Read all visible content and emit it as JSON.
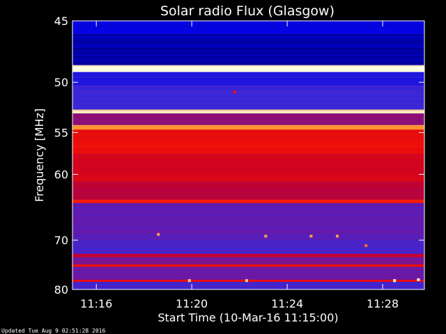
{
  "chart_data": {
    "type": "heatmap",
    "title": "Solar radio Flux (Glasgow)",
    "xlabel": "Start Time (10-Mar-16 11:15:00)",
    "ylabel": "Frequency [MHz]",
    "x_ticks": [
      "11:16",
      "11:20",
      "11:24",
      "11:28"
    ],
    "x_tick_minutes": [
      1,
      5,
      9,
      13
    ],
    "xlim_minutes": [
      0,
      14.75
    ],
    "y_ticks": [
      45,
      50,
      55,
      60,
      70,
      80
    ],
    "ylim": [
      45,
      80
    ],
    "y_scale": "reciprocal",
    "intensity_bands": [
      {
        "f0": 45.0,
        "f1": 46.0,
        "level": 0.12
      },
      {
        "f0": 46.0,
        "f1": 48.5,
        "level": 0.06
      },
      {
        "f0": 48.5,
        "f1": 49.1,
        "level": 1.0
      },
      {
        "f0": 49.1,
        "f1": 50.3,
        "level": 0.2
      },
      {
        "f0": 50.3,
        "f1": 52.6,
        "level": 0.28
      },
      {
        "f0": 52.6,
        "f1": 53.0,
        "level": 0.97
      },
      {
        "f0": 53.0,
        "f1": 54.2,
        "level": 0.45
      },
      {
        "f0": 54.2,
        "f1": 54.7,
        "level": 0.88
      },
      {
        "f0": 54.7,
        "f1": 57.5,
        "level": 0.7
      },
      {
        "f0": 57.5,
        "f1": 61.0,
        "level": 0.62
      },
      {
        "f0": 61.0,
        "f1": 63.5,
        "level": 0.55
      },
      {
        "f0": 63.5,
        "f1": 64.0,
        "level": 0.75
      },
      {
        "f0": 64.0,
        "f1": 70.0,
        "level": 0.35
      },
      {
        "f0": 70.0,
        "f1": 72.5,
        "level": 0.3
      },
      {
        "f0": 72.5,
        "f1": 73.2,
        "level": 0.58
      },
      {
        "f0": 73.2,
        "f1": 74.6,
        "level": 0.4
      },
      {
        "f0": 74.6,
        "f1": 75.1,
        "level": 0.7
      },
      {
        "f0": 75.1,
        "f1": 77.8,
        "level": 0.38
      },
      {
        "f0": 77.8,
        "f1": 78.3,
        "level": 0.7
      },
      {
        "f0": 78.3,
        "f1": 80.0,
        "level": 0.3
      }
    ],
    "bursts": [
      {
        "t": 3.6,
        "f": 69.0,
        "level": 0.9
      },
      {
        "t": 6.8,
        "f": 50.9,
        "level": 0.75
      },
      {
        "t": 8.1,
        "f": 69.3,
        "level": 0.9
      },
      {
        "t": 10.0,
        "f": 69.3,
        "level": 0.9
      },
      {
        "t": 11.1,
        "f": 69.3,
        "level": 0.9
      },
      {
        "t": 12.3,
        "f": 71.0,
        "level": 0.85
      },
      {
        "t": 4.9,
        "f": 78.0,
        "level": 0.95
      },
      {
        "t": 7.3,
        "f": 78.0,
        "level": 0.95
      },
      {
        "t": 13.5,
        "f": 78.0,
        "level": 1.0
      },
      {
        "t": 14.5,
        "f": 77.8,
        "level": 1.0
      }
    ]
  },
  "footer": {
    "updated": "Updated Tue Aug  9 02:51:28 2016"
  }
}
